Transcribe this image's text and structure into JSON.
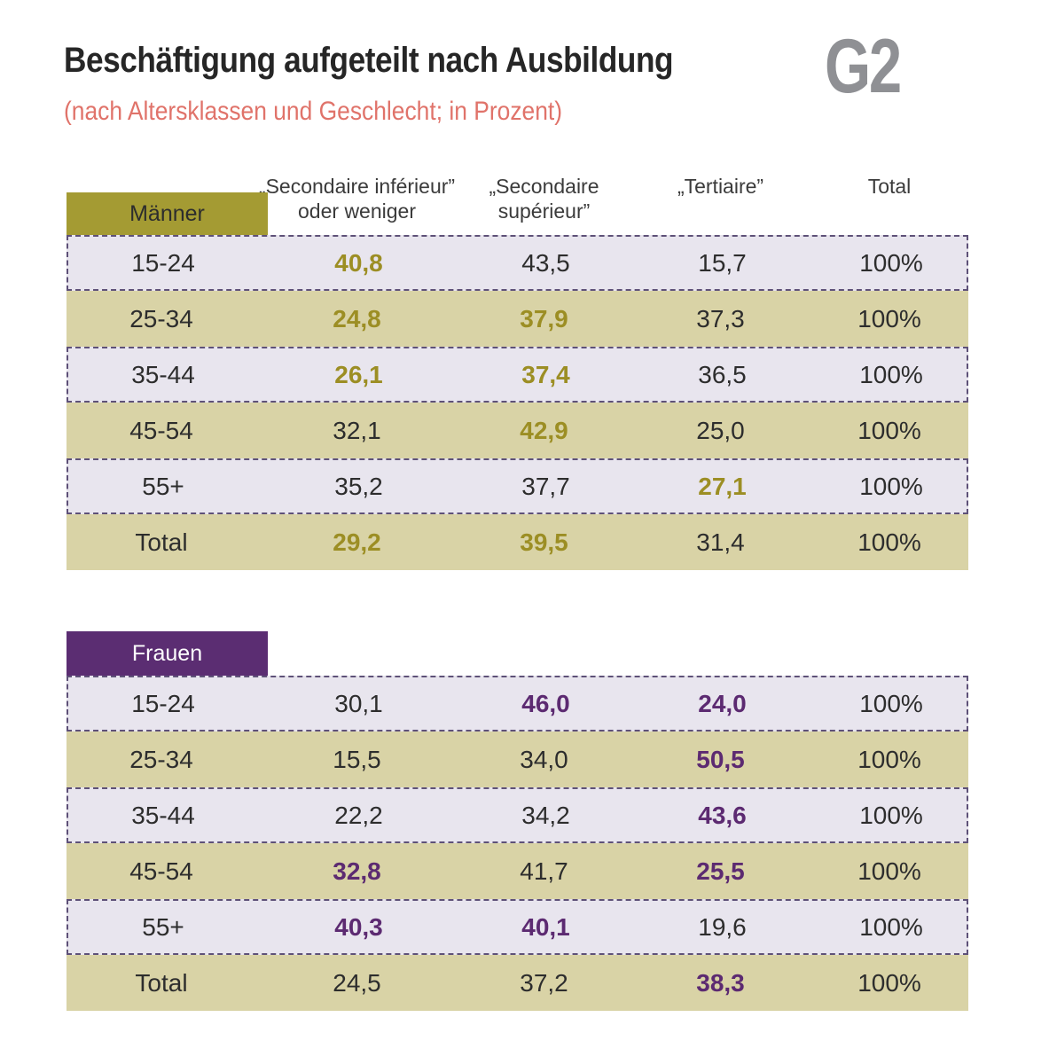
{
  "colors": {
    "olive": "#a49b33",
    "khaki": "#d9d3a6",
    "lavender": "#e8e5ee",
    "dash": "#5e5178",
    "purple": "#5b2d72",
    "gold": "#9c8e24",
    "plum": "#5c2a71",
    "titleText": "#262626",
    "subtitleText": "#e0736a",
    "figureGray": "#8f9094",
    "bodyText": "#2d2d2d",
    "headerText": "#3b3b3b"
  },
  "chart_data": {
    "type": "table",
    "title": "Beschäftigung aufgeteilt nach Ausbildung",
    "subtitle": "(nach Altersklassen und Geschlecht; in Prozent)",
    "figure_label": "G2",
    "columns": [
      {
        "line1": "„Secondaire inférieur”",
        "line2": "oder weniger"
      },
      {
        "line1": "„Secondaire",
        "line2": "supérieur”"
      },
      {
        "line1": "„Tertiaire”",
        "line2": ""
      },
      {
        "line1": "Total",
        "line2": ""
      }
    ],
    "tables": [
      {
        "label": "Männer",
        "rows": [
          {
            "age": "15-24",
            "values": [
              "40,8",
              "43,5",
              "15,7",
              "100%"
            ],
            "bold": [
              true,
              false,
              false,
              false
            ]
          },
          {
            "age": "25-34",
            "values": [
              "24,8",
              "37,9",
              "37,3",
              "100%"
            ],
            "bold": [
              true,
              true,
              false,
              false
            ]
          },
          {
            "age": "35-44",
            "values": [
              "26,1",
              "37,4",
              "36,5",
              "100%"
            ],
            "bold": [
              true,
              true,
              false,
              false
            ]
          },
          {
            "age": "45-54",
            "values": [
              "32,1",
              "42,9",
              "25,0",
              "100%"
            ],
            "bold": [
              false,
              true,
              false,
              false
            ]
          },
          {
            "age": "55+",
            "values": [
              "35,2",
              "37,7",
              "27,1",
              "100%"
            ],
            "bold": [
              false,
              false,
              true,
              false
            ]
          },
          {
            "age": "Total",
            "values": [
              "29,2",
              "39,5",
              "31,4",
              "100%"
            ],
            "bold": [
              true,
              true,
              false,
              false
            ]
          }
        ]
      },
      {
        "label": "Frauen",
        "rows": [
          {
            "age": "15-24",
            "values": [
              "30,1",
              "46,0",
              "24,0",
              "100%"
            ],
            "bold": [
              false,
              true,
              true,
              false
            ]
          },
          {
            "age": "25-34",
            "values": [
              "15,5",
              "34,0",
              "50,5",
              "100%"
            ],
            "bold": [
              false,
              false,
              true,
              false
            ]
          },
          {
            "age": "35-44",
            "values": [
              "22,2",
              "34,2",
              "43,6",
              "100%"
            ],
            "bold": [
              false,
              false,
              true,
              false
            ]
          },
          {
            "age": "45-54",
            "values": [
              "32,8",
              "41,7",
              "25,5",
              "100%"
            ],
            "bold": [
              true,
              false,
              true,
              false
            ]
          },
          {
            "age": "55+",
            "values": [
              "40,3",
              "40,1",
              "19,6",
              "100%"
            ],
            "bold": [
              true,
              true,
              false,
              false
            ]
          },
          {
            "age": "Total",
            "values": [
              "24,5",
              "37,2",
              "38,3",
              "100%"
            ],
            "bold": [
              false,
              false,
              true,
              false
            ]
          }
        ]
      }
    ]
  }
}
